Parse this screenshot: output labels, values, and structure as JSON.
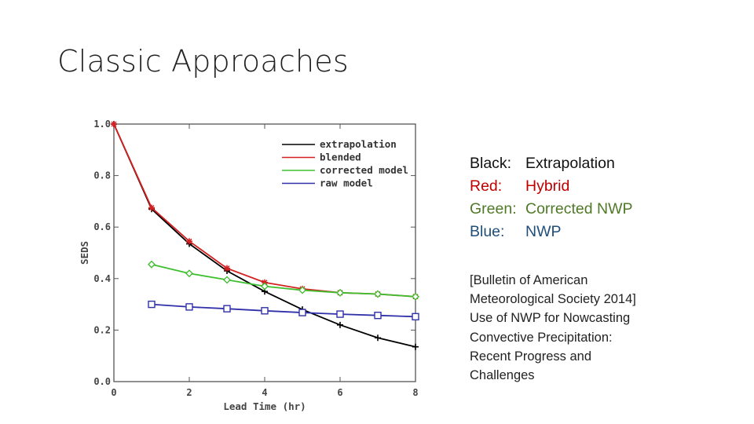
{
  "slide": {
    "title": "Classic Approaches"
  },
  "legend_text": [
    {
      "label": "Black:",
      "value": "Extrapolation",
      "color": "#111111"
    },
    {
      "label": "Red:",
      "value": "Hybrid",
      "color": "#c00000"
    },
    {
      "label": "Green:",
      "value": "Corrected NWP",
      "color": "#4f7a28"
    },
    {
      "label": "Blue:",
      "value": "NWP",
      "color": "#1f4e79"
    }
  ],
  "citation": [
    "[Bulletin of American",
    "Meteorological Society 2014]",
    "Use of NWP for Nowcasting",
    "Convective Precipitation:",
    "Recent Progress and",
    "Challenges"
  ],
  "chart_data": {
    "type": "line",
    "title": "",
    "xlabel": "Lead Time (hr)",
    "ylabel": "SEDS",
    "xlim": [
      0,
      8
    ],
    "ylim": [
      0,
      1.0
    ],
    "xticks": [
      "0",
      "2",
      "4",
      "6",
      "8"
    ],
    "yticks": [
      "0.0",
      "0.2",
      "0.4",
      "0.6",
      "0.8",
      "1.0"
    ],
    "legend_position": "top-right",
    "series": [
      {
        "name": "extrapolation",
        "color": "#000000",
        "marker": "plus",
        "x": [
          0,
          1,
          2,
          3,
          4,
          5,
          6,
          7,
          8
        ],
        "y": [
          1.0,
          0.67,
          0.535,
          0.43,
          0.35,
          0.28,
          0.22,
          0.17,
          0.135
        ]
      },
      {
        "name": "blended",
        "color": "#d42020",
        "marker": "star",
        "x": [
          0,
          1,
          2,
          3,
          4,
          5,
          6,
          7,
          8
        ],
        "y": [
          1.0,
          0.675,
          0.545,
          0.44,
          0.385,
          0.36,
          0.345,
          0.34,
          0.33
        ]
      },
      {
        "name": "corrected model",
        "color": "#3fbf2f",
        "marker": "diamond",
        "x": [
          1,
          2,
          3,
          4,
          5,
          6,
          7,
          8
        ],
        "y": [
          0.455,
          0.42,
          0.395,
          0.37,
          0.355,
          0.345,
          0.34,
          0.33
        ]
      },
      {
        "name": "raw model",
        "color": "#3030a8",
        "marker": "square",
        "x": [
          1,
          2,
          3,
          4,
          5,
          6,
          7,
          8
        ],
        "y": [
          0.3,
          0.29,
          0.283,
          0.275,
          0.268,
          0.262,
          0.257,
          0.252
        ]
      }
    ]
  }
}
